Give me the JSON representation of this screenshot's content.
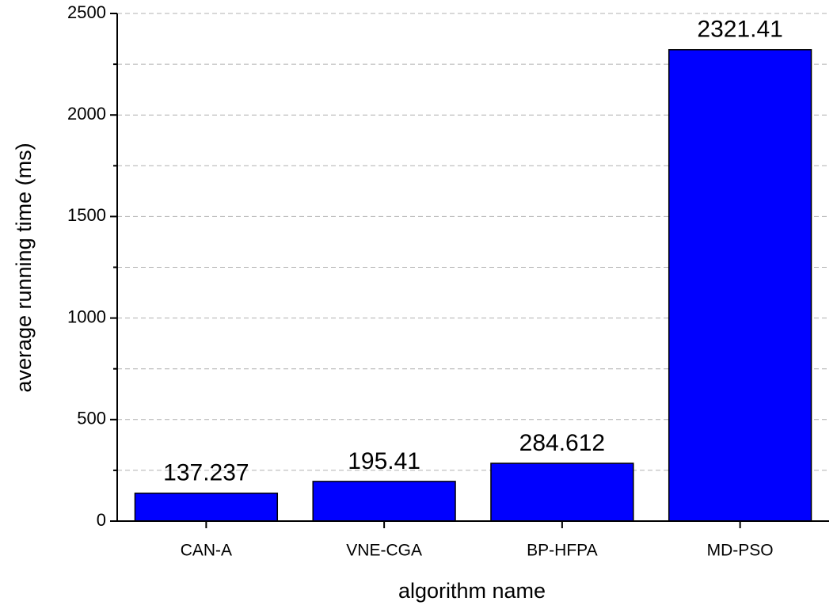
{
  "chart_data": {
    "type": "bar",
    "x_label": "algorithm name",
    "y_label": "average running time (ms)",
    "categories": [
      "CAN-A",
      "VNE-CGA",
      "BP-HFPA",
      "MD-PSO"
    ],
    "values": [
      137.237,
      195.41,
      284.612,
      2321.41
    ],
    "color": "#0000ff",
    "ylim": [
      0,
      2500
    ],
    "yticks": [
      0,
      500,
      1000,
      1500,
      2000,
      2500
    ],
    "minor_yticks": [
      250,
      750,
      1250,
      1750,
      2250
    ],
    "grid": true
  }
}
